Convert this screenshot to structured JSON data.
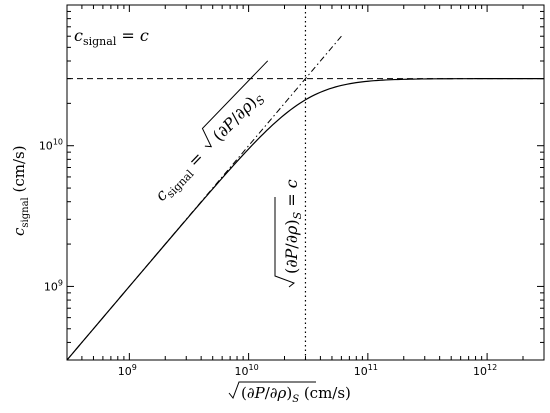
{
  "chart_data": {
    "type": "line",
    "title": "",
    "xlabel": "√(∂P/∂ρ)_S  (cm/s)",
    "ylabel": "c_signal  (cm/s)",
    "x_scale": "log",
    "y_scale": "log",
    "xlim": [
      300000000,
      3000000000000
    ],
    "ylim": [
      300000000,
      100000000000
    ],
    "x_ticks": [
      {
        "value": 1000000000,
        "label": "10^9"
      },
      {
        "value": 10000000000,
        "label": "10^10"
      },
      {
        "value": 100000000000,
        "label": "10^11"
      },
      {
        "value": 1000000000000,
        "label": "10^12"
      }
    ],
    "y_ticks": [
      {
        "value": 1000000000,
        "label": "10^9"
      },
      {
        "value": 10000000000,
        "label": "10^10"
      }
    ],
    "grid": false,
    "legend": "none",
    "speed_of_light": 29979245800,
    "series": [
      {
        "style": "solid",
        "x": [
          300000000,
          1000000000,
          3000000000,
          10000000000,
          20000000000,
          29979245800,
          50000000000,
          100000000000,
          300000000000,
          1000000000000,
          3000000000000
        ],
        "y": [
          299950000,
          998900000,
          2990000000,
          9485000000,
          16800000000,
          21200000000,
          25700000000,
          28620000000,
          29850000000,
          29970000000,
          29979000000
        ]
      },
      {
        "style": "dash-dot",
        "x": [
          300000000,
          3000000000,
          29979245800,
          60000000000
        ],
        "y": [
          300000000,
          3000000000,
          29979245800,
          60000000000
        ]
      },
      {
        "style": "dashed",
        "x": [
          300000000,
          3000000000000
        ],
        "y": [
          29979245800,
          29979245800
        ]
      },
      {
        "style": "dotted",
        "x": [
          29979245800,
          29979245800
        ],
        "y": [
          300000000,
          100000000000
        ]
      }
    ],
    "annotations": [
      {
        "name": "c-equals-line-label",
        "text": "c_signal = c"
      },
      {
        "name": "sound-speed-line-label",
        "text": "c_signal = √(∂P/∂ρ)_S"
      },
      {
        "name": "vertical-line-label",
        "text": "√(∂P/∂ρ)_S = c"
      }
    ]
  }
}
